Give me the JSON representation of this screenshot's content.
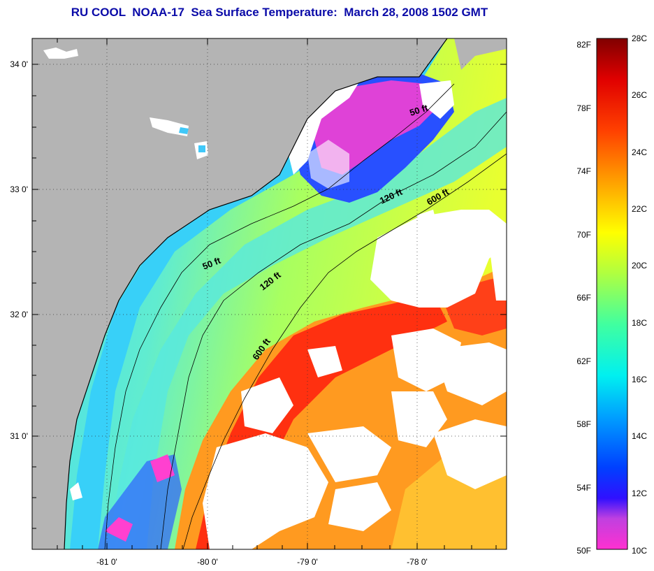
{
  "title": "RU COOL  NOAA-17  Sea Surface Temperature:  March 28, 2008 1502 GMT",
  "longitude_labels": [
    "-81 0'",
    "-80 0'",
    "-79 0'",
    "-78 0'"
  ],
  "latitude_labels": [
    "34 0'",
    "33 0'",
    "32 0'",
    "31 0'"
  ],
  "depth_contour_labels": [
    {
      "text": "50 ft"
    },
    {
      "text": "50 ft"
    },
    {
      "text": "120 ft"
    },
    {
      "text": "120 ft"
    },
    {
      "text": "600 ft"
    },
    {
      "text": "600 ft"
    }
  ],
  "colorbar": {
    "fahrenheit_labels": [
      "82F",
      "78F",
      "74F",
      "70F",
      "66F",
      "62F",
      "58F",
      "54F",
      "50F"
    ],
    "celsius_labels": [
      "28C",
      "26C",
      "24C",
      "22C",
      "20C",
      "18C",
      "16C",
      "14C",
      "12C",
      "10C"
    ]
  },
  "colors": {
    "title": "#0a0aa8",
    "land": "#b4b4b4",
    "cloud": "#ffffff",
    "cold": "#ff3cc8",
    "cool": "#2050ff",
    "mid": "#40e0f0",
    "mild": "#a0ff60",
    "warm": "#ffa020",
    "hot": "#ff2a10"
  }
}
